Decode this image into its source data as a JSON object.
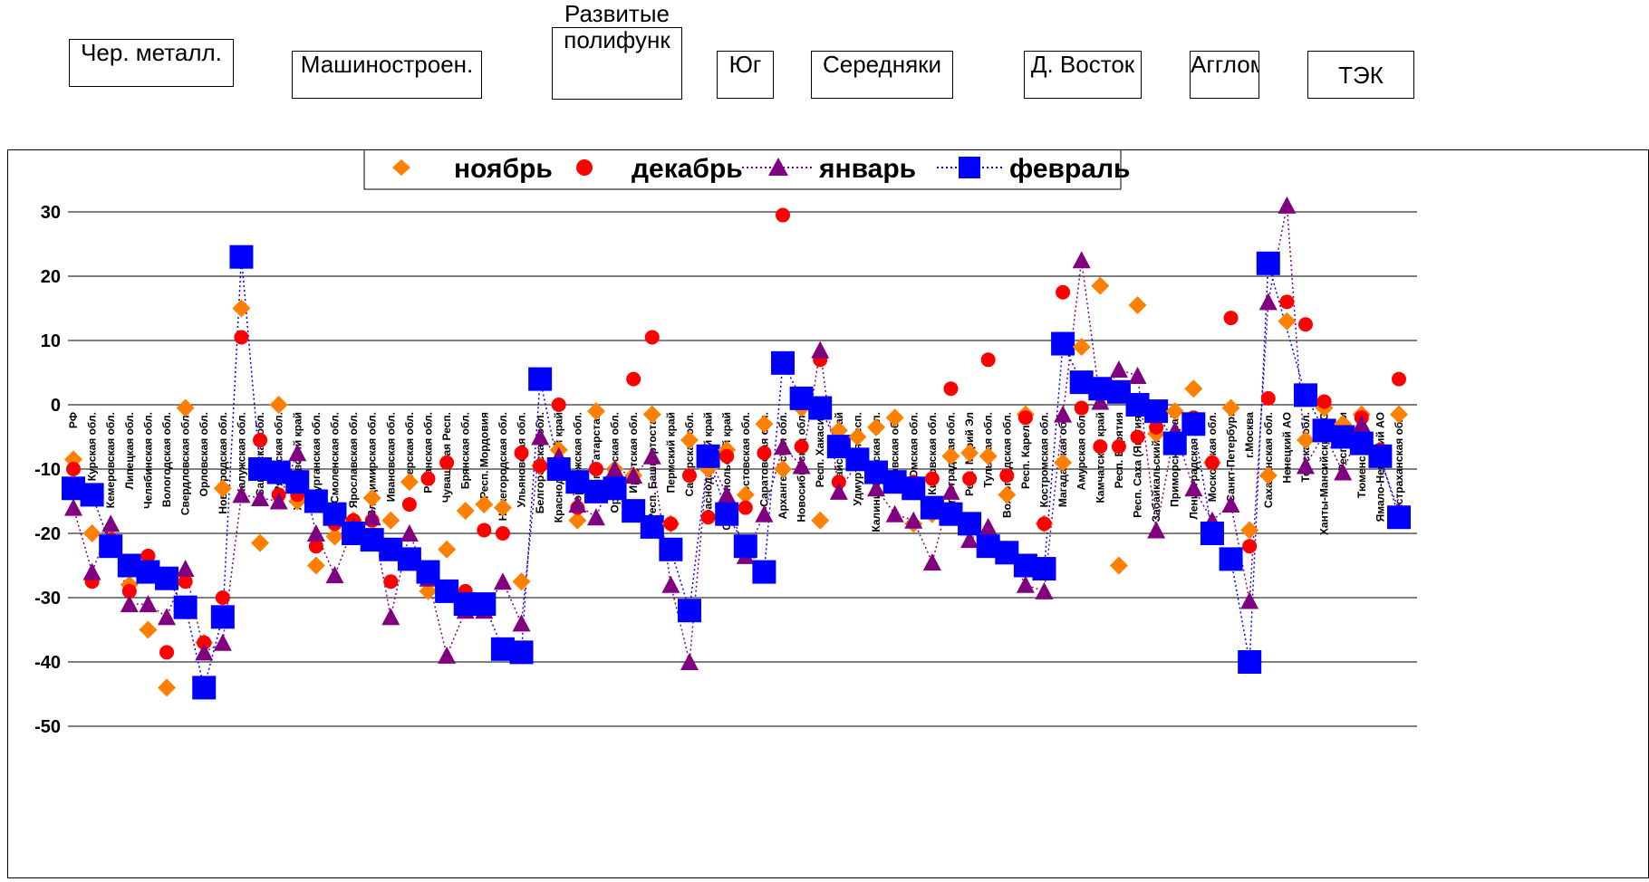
{
  "groups": [
    {
      "label": "Чер. металл."
    },
    {
      "label": "Машиностроен."
    },
    {
      "label": "Развитые полифунк"
    },
    {
      "label": "Юг"
    },
    {
      "label": "Середняки"
    },
    {
      "label": "Д. Восток"
    },
    {
      "label": "Агглом"
    },
    {
      "label": "ТЭК"
    }
  ],
  "chart_data": {
    "type": "scatter",
    "ylim": [
      -50,
      30
    ],
    "yticks": [
      30,
      20,
      10,
      0,
      -10,
      -20,
      -30,
      -40,
      -50
    ],
    "legend_position": "top-center",
    "colors": {
      "nov": "#ff7f00",
      "dec": "#ff0000",
      "jan": "#800080",
      "feb": "#0000ff"
    },
    "series_names": {
      "nov": "ноябрь",
      "dec": "декабрь",
      "jan": "январь",
      "feb": "февраль"
    },
    "categories": [
      {
        "name": "РФ",
        "nov": -8.5,
        "dec": -10,
        "jan": -16,
        "feb": -13
      },
      {
        "name": "Курская обл.",
        "nov": -20,
        "dec": -27.5,
        "jan": -26,
        "feb": -14
      },
      {
        "name": "Кемеровская обл.",
        "nov": -21,
        "dec": -21,
        "jan": -18.5,
        "feb": -22
      },
      {
        "name": "Липецкая обл.",
        "nov": -28,
        "dec": -29,
        "jan": -31,
        "feb": -25
      },
      {
        "name": "Челябинская обл.",
        "nov": -35,
        "dec": -23.5,
        "jan": -31,
        "feb": -26
      },
      {
        "name": "Вологодская обл.",
        "nov": -44,
        "dec": -38.5,
        "jan": -33,
        "feb": -27
      },
      {
        "name": "Свердловская обл.",
        "nov": -0.5,
        "dec": -27.5,
        "jan": -25.5,
        "feb": -31.5
      },
      {
        "name": "Орловская обл.",
        "nov": -37,
        "dec": -37,
        "jan": -38.5,
        "feb": -44
      },
      {
        "name": "Новгородская обл.",
        "nov": -13,
        "dec": -30,
        "jan": -37,
        "feb": -33
      },
      {
        "name": "Калужская обл.",
        "nov": 15,
        "dec": 10.5,
        "jan": -14,
        "feb": 23
      },
      {
        "name": "Самарская обл.",
        "nov": -21.5,
        "dec": -5.5,
        "jan": -14.5,
        "feb": -10
      },
      {
        "name": "Рязанская обл.",
        "nov": 0,
        "dec": -14,
        "jan": -15,
        "feb": -10.5
      },
      {
        "name": "Хабаровский край",
        "nov": -15,
        "dec": -14,
        "jan": -7.5,
        "feb": -12
      },
      {
        "name": "Курганская обл.",
        "nov": -25,
        "dec": -22,
        "jan": -20,
        "feb": -15
      },
      {
        "name": "Смоленская обл.",
        "nov": -20.5,
        "dec": -18.5,
        "jan": -26.5,
        "feb": -17
      },
      {
        "name": "Ярославская обл.",
        "nov": -18,
        "dec": -18,
        "jan": -19,
        "feb": -20
      },
      {
        "name": "Владимирская обл.",
        "nov": -14.5,
        "dec": -18,
        "jan": -17.5,
        "feb": -21
      },
      {
        "name": "Ивановская обл.",
        "nov": -18,
        "dec": -27.5,
        "jan": -33,
        "feb": -22.5
      },
      {
        "name": "Тверская обл.",
        "nov": -12,
        "dec": -15.5,
        "jan": -20,
        "feb": -24
      },
      {
        "name": "Рязанская обл.",
        "nov": -29,
        "dec": -11.5,
        "jan": -27,
        "feb": -26
      },
      {
        "name": "Чувашская Респ.",
        "nov": -22.5,
        "dec": -9,
        "jan": -39,
        "feb": -29
      },
      {
        "name": "Брянская обл.",
        "nov": -16.5,
        "dec": -29,
        "jan": -32,
        "feb": -31
      },
      {
        "name": "Респ. Мордовия",
        "nov": -15.5,
        "dec": -19.5,
        "jan": -32,
        "feb": -31
      },
      {
        "name": "Нижегородская обл.",
        "nov": -16,
        "dec": -20,
        "jan": -27.5,
        "feb": -38
      },
      {
        "name": "Ульяновская обл.",
        "nov": -27.5,
        "dec": -7.5,
        "jan": -34,
        "feb": -38.5
      },
      {
        "name": "Белгородская обл.",
        "nov": -9.5,
        "dec": -9.5,
        "jan": -5,
        "feb": 4
      },
      {
        "name": "Краснодарский край",
        "nov": -7,
        "dec": 0,
        "jan": -8,
        "feb": -10
      },
      {
        "name": "Воронежская обл.",
        "nov": -18,
        "dec": -16,
        "jan": -15.5,
        "feb": -12
      },
      {
        "name": "Респ. Татарстан",
        "nov": -1,
        "dec": -10,
        "jan": -17.5,
        "feb": -13.5
      },
      {
        "name": "Оренбургская обл.",
        "nov": -10,
        "dec": -12,
        "jan": -10,
        "feb": -13
      },
      {
        "name": "Иркутская обл.",
        "nov": -11,
        "dec": 4,
        "jan": -11,
        "feb": -16.5
      },
      {
        "name": "Респ. Башкортостан",
        "nov": -1.5,
        "dec": 10.5,
        "jan": -8,
        "feb": -19
      },
      {
        "name": "Пермский край",
        "nov": -18.5,
        "dec": -18.5,
        "jan": -28,
        "feb": -22.5
      },
      {
        "name": "Самарская обл.",
        "nov": -5.5,
        "dec": -11,
        "jan": -40,
        "feb": -32
      },
      {
        "name": "Краснодарский край",
        "nov": -10,
        "dec": -17.5,
        "jan": -8,
        "feb": -8
      },
      {
        "name": "Ставропольский край",
        "nov": -7,
        "dec": -8,
        "jan": -14,
        "feb": -17
      },
      {
        "name": "Ростовская обл.",
        "nov": -14,
        "dec": -16,
        "jan": -23.5,
        "feb": -22
      },
      {
        "name": "Саратовская обл.",
        "nov": -3,
        "dec": -7.5,
        "jan": -17,
        "feb": -26
      },
      {
        "name": "Архангельская обл.",
        "nov": -10,
        "dec": 29.5,
        "jan": -6.5,
        "feb": 6.5
      },
      {
        "name": "Новосибирская обл.",
        "nov": -0.5,
        "dec": -6.5,
        "jan": -9.5,
        "feb": 1
      },
      {
        "name": "Респ. Хакасия",
        "nov": -18,
        "dec": 7,
        "jan": 8.5,
        "feb": -0.5
      },
      {
        "name": "Алтайский край",
        "nov": -4,
        "dec": -12,
        "jan": -13.5,
        "feb": -6.5
      },
      {
        "name": "Удмуртская Респ.",
        "nov": -5,
        "dec": -8,
        "jan": -9,
        "feb": -8.5
      },
      {
        "name": "Калининградская обл.",
        "nov": -3.5,
        "dec": -10,
        "jan": -13,
        "feb": -10.5
      },
      {
        "name": "Псковская обл.",
        "nov": -2,
        "dec": -12,
        "jan": -17,
        "feb": -12
      },
      {
        "name": "Омская обл.",
        "nov": -18.5,
        "dec": -12,
        "jan": -18,
        "feb": -13
      },
      {
        "name": "Кировская обл.",
        "nov": -17,
        "dec": -11.5,
        "jan": -24.5,
        "feb": -16
      },
      {
        "name": "Волгоградская обл.",
        "nov": -8,
        "dec": 2.5,
        "jan": -13.5,
        "feb": -17
      },
      {
        "name": "Респ. Марий Эл",
        "nov": -7.5,
        "dec": -11.5,
        "jan": -21,
        "feb": -18.5
      },
      {
        "name": "Тульская обл.",
        "nov": -8,
        "dec": 7,
        "jan": -19,
        "feb": -22
      },
      {
        "name": "Волгоградская обл.",
        "nov": -14,
        "dec": -11,
        "jan": -22.5,
        "feb": -23
      },
      {
        "name": "Респ. Карелия",
        "nov": -1.5,
        "dec": -2,
        "jan": -28,
        "feb": -25
      },
      {
        "name": "Костромская обл.",
        "nov": -18.5,
        "dec": -18.5,
        "jan": -29,
        "feb": -25.5
      },
      {
        "name": "Магаданская обл.",
        "nov": -9,
        "dec": 17.5,
        "jan": -1.5,
        "feb": 9.5
      },
      {
        "name": "Амурская обл.",
        "nov": 9,
        "dec": -0.5,
        "jan": 22.5,
        "feb": 3.5
      },
      {
        "name": "Камчатский край",
        "nov": 18.5,
        "dec": -6.5,
        "jan": 0.5,
        "feb": 2.5
      },
      {
        "name": "Респ. Бурятия",
        "nov": -25,
        "dec": -6.5,
        "jan": 5.5,
        "feb": 2
      },
      {
        "name": "Респ. Саха (Якутия)",
        "nov": 15.5,
        "dec": -5,
        "jan": 4.5,
        "feb": 0
      },
      {
        "name": "Забайкальский край",
        "nov": -4.5,
        "dec": -3.5,
        "jan": -19.5,
        "feb": -1
      },
      {
        "name": "Приморский край",
        "nov": -1,
        "dec": -5,
        "jan": -4,
        "feb": -6
      },
      {
        "name": "Ленинградская обл.",
        "nov": 2.5,
        "dec": -2,
        "jan": -13,
        "feb": -3
      },
      {
        "name": "Московская обл.",
        "nov": -9,
        "dec": -9,
        "jan": -18,
        "feb": -20
      },
      {
        "name": "Санкт-Петербург",
        "nov": -0.5,
        "dec": 13.5,
        "jan": -15.5,
        "feb": -24
      },
      {
        "name": "г.Москва",
        "nov": -19.5,
        "dec": -22,
        "jan": -30.5,
        "feb": -40
      },
      {
        "name": "Сахалинская обл.",
        "nov": -11,
        "dec": 1,
        "jan": 16,
        "feb": 22
      },
      {
        "name": "Ненецкий АО",
        "nov": 13,
        "dec": 16,
        "jan": 31,
        "feb": null
      },
      {
        "name": "Томская обл.",
        "nov": -5.5,
        "dec": 12.5,
        "jan": -9.5,
        "feb": 1.5
      },
      {
        "name": "Ханты-Мансийский АО",
        "nov": -0.5,
        "dec": 0.5,
        "jan": -4.5,
        "feb": -4
      },
      {
        "name": "Респ. Коми",
        "nov": -3,
        "dec": -5,
        "jan": -10.5,
        "feb": -5
      },
      {
        "name": "Тюменская обл.",
        "nov": -1.5,
        "dec": -2,
        "jan": -3,
        "feb": -6
      },
      {
        "name": "Ямало-Ненецкий АО",
        "nov": -7.5,
        "dec": -7,
        "jan": -8.5,
        "feb": -8
      },
      {
        "name": "Астраханская обл.",
        "nov": -1.5,
        "dec": 4,
        "jan": -16.5,
        "feb": -17.5
      }
    ]
  }
}
